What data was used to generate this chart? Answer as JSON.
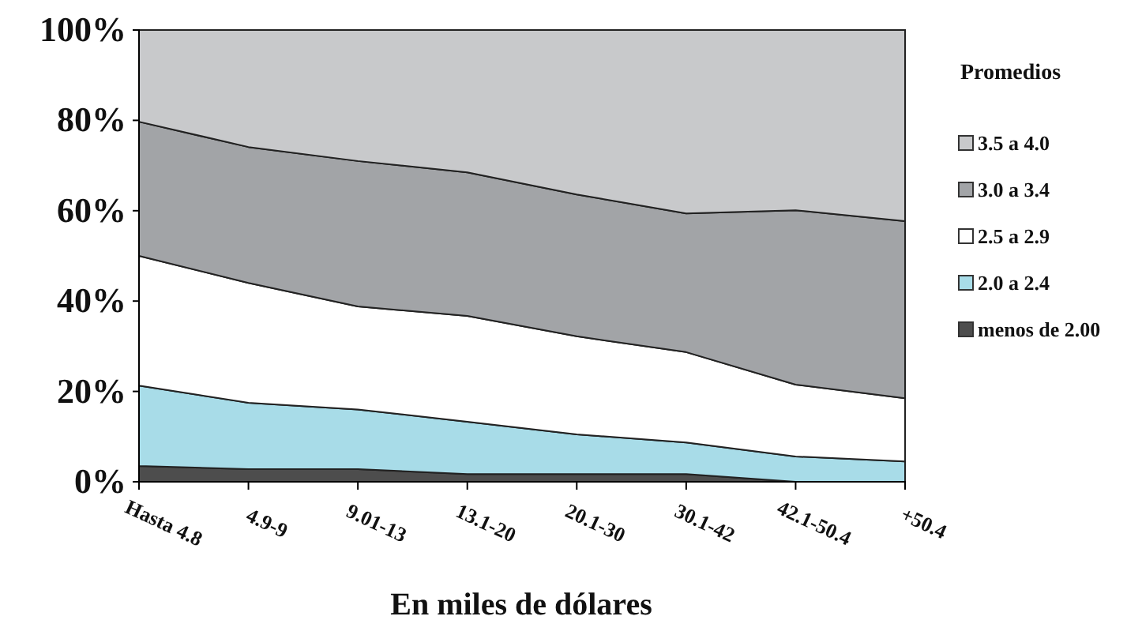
{
  "chart_data": {
    "type": "area",
    "stacked": true,
    "xlabel": "En miles de dólares",
    "legend_title": "Promedios",
    "legend": "right",
    "categories": [
      "Hasta 4.8",
      "4.9-9",
      "9.01-13",
      "13.1-20",
      "20.1-30",
      "30.1-42",
      "42.1-50.4",
      "+50.4"
    ],
    "ylim": [
      0,
      100
    ],
    "yticks": [
      {
        "value": 0,
        "label": "0%"
      },
      {
        "value": 20,
        "label": "20%"
      },
      {
        "value": 40,
        "label": "40%"
      },
      {
        "value": 60,
        "label": "60%"
      },
      {
        "value": 80,
        "label": "80%"
      },
      {
        "value": 100,
        "label": "100%"
      }
    ],
    "series": [
      {
        "name": "menos de 2.00",
        "color": "#4d4d4d",
        "values": [
          3.5,
          2.8,
          2.8,
          1.7,
          1.7,
          1.7,
          0,
          0
        ]
      },
      {
        "name": "2.0 a 2.4",
        "color": "#a8dce8",
        "values": [
          17.8,
          14.7,
          13.2,
          11.6,
          8.8,
          7,
          5.6,
          4.5
        ]
      },
      {
        "name": "2.5 a 2.9",
        "color": "#ffffff",
        "values": [
          28.7,
          26.5,
          22.8,
          23.4,
          21.7,
          20,
          15.9,
          14
        ]
      },
      {
        "name": "3.0 a 3.4",
        "color": "#a2a4a7",
        "values": [
          29.7,
          30.1,
          32.2,
          31.8,
          31.4,
          30.7,
          38.6,
          39.2
        ]
      },
      {
        "name": "3.5 a 4.0",
        "color": "#c8c9cb",
        "values": [
          20.3,
          25.9,
          29,
          31.5,
          36.4,
          40.6,
          39.9,
          42.3
        ]
      }
    ]
  }
}
